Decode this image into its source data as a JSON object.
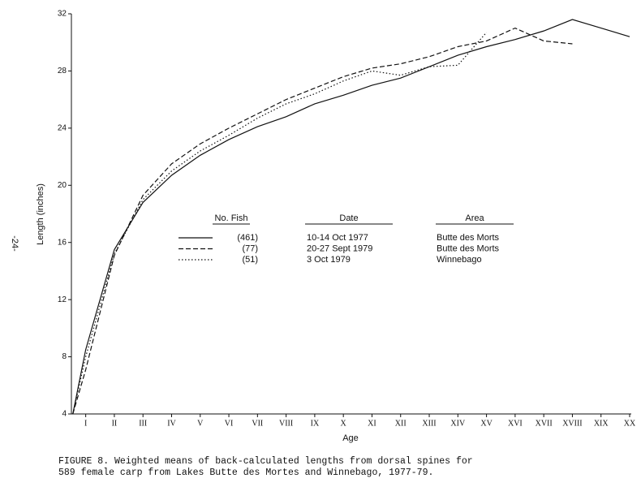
{
  "page_number": "-24-",
  "chart_data": {
    "type": "line",
    "xlabel": "Age",
    "ylabel": "Length (inches)",
    "x": [
      0.55,
      1,
      2,
      3,
      4,
      5,
      6,
      7,
      8,
      9,
      10,
      11,
      12,
      13,
      14,
      15,
      16,
      17,
      18,
      19,
      20
    ],
    "xlim": [
      0.5,
      20
    ],
    "xticks": [
      {
        "value": 1,
        "label": "I"
      },
      {
        "value": 2,
        "label": "II"
      },
      {
        "value": 3,
        "label": "III"
      },
      {
        "value": 4,
        "label": "IV"
      },
      {
        "value": 5,
        "label": "V"
      },
      {
        "value": 6,
        "label": "VI"
      },
      {
        "value": 7,
        "label": "VII"
      },
      {
        "value": 8,
        "label": "VIII"
      },
      {
        "value": 9,
        "label": "IX"
      },
      {
        "value": 10,
        "label": "X"
      },
      {
        "value": 11,
        "label": "XI"
      },
      {
        "value": 12,
        "label": "XII"
      },
      {
        "value": 13,
        "label": "XIII"
      },
      {
        "value": 14,
        "label": "XIV"
      },
      {
        "value": 15,
        "label": "XV"
      },
      {
        "value": 16,
        "label": "XVI"
      },
      {
        "value": 17,
        "label": "XVII"
      },
      {
        "value": 18,
        "label": "XVIII"
      },
      {
        "value": 19,
        "label": "XIX"
      },
      {
        "value": 20,
        "label": "XX"
      }
    ],
    "ylim": [
      4,
      32
    ],
    "yticks": [
      4,
      8,
      12,
      16,
      20,
      24,
      28,
      32
    ],
    "legend_headers": [
      "No. Fish",
      "Date",
      "Area"
    ],
    "series": [
      {
        "name": "(461)",
        "date": "10-14 Oct 1977",
        "area": "Butte des Morts",
        "color": "#111111",
        "style": "solid",
        "values": [
          4,
          8.5,
          15.5,
          18.8,
          20.7,
          22.1,
          23.2,
          24.1,
          24.8,
          25.7,
          26.3,
          27.0,
          27.5,
          28.3,
          29.1,
          29.7,
          30.2,
          30.8,
          31.6,
          31.0,
          30.4
        ]
      },
      {
        "name": "(77)",
        "date": "20-27 Sept 1979",
        "area": "Butte des Morts",
        "color": "#111111",
        "style": "dashed",
        "values": [
          4,
          7.1,
          15.1,
          19.3,
          21.5,
          22.9,
          24.0,
          25.0,
          26.0,
          26.8,
          27.6,
          28.2,
          28.5,
          29.0,
          29.7,
          30.1,
          31.0,
          30.1,
          29.9,
          null,
          null
        ]
      },
      {
        "name": "(51)",
        "date": "3 Oct 1979",
        "area": "Winnebago",
        "color": "#111111",
        "style": "dotted",
        "values": [
          4,
          8.0,
          15.2,
          19.0,
          21.0,
          22.4,
          23.5,
          24.7,
          25.7,
          26.4,
          27.3,
          28.0,
          27.7,
          28.3,
          28.4,
          30.7,
          null,
          null,
          null,
          null,
          null
        ]
      }
    ],
    "caption": [
      "FIGURE 8.  Weighted means of back-calculated lengths from dorsal spines for",
      "589 female carp from Lakes Butte des Mortes and Winnebago, 1977-79."
    ]
  }
}
